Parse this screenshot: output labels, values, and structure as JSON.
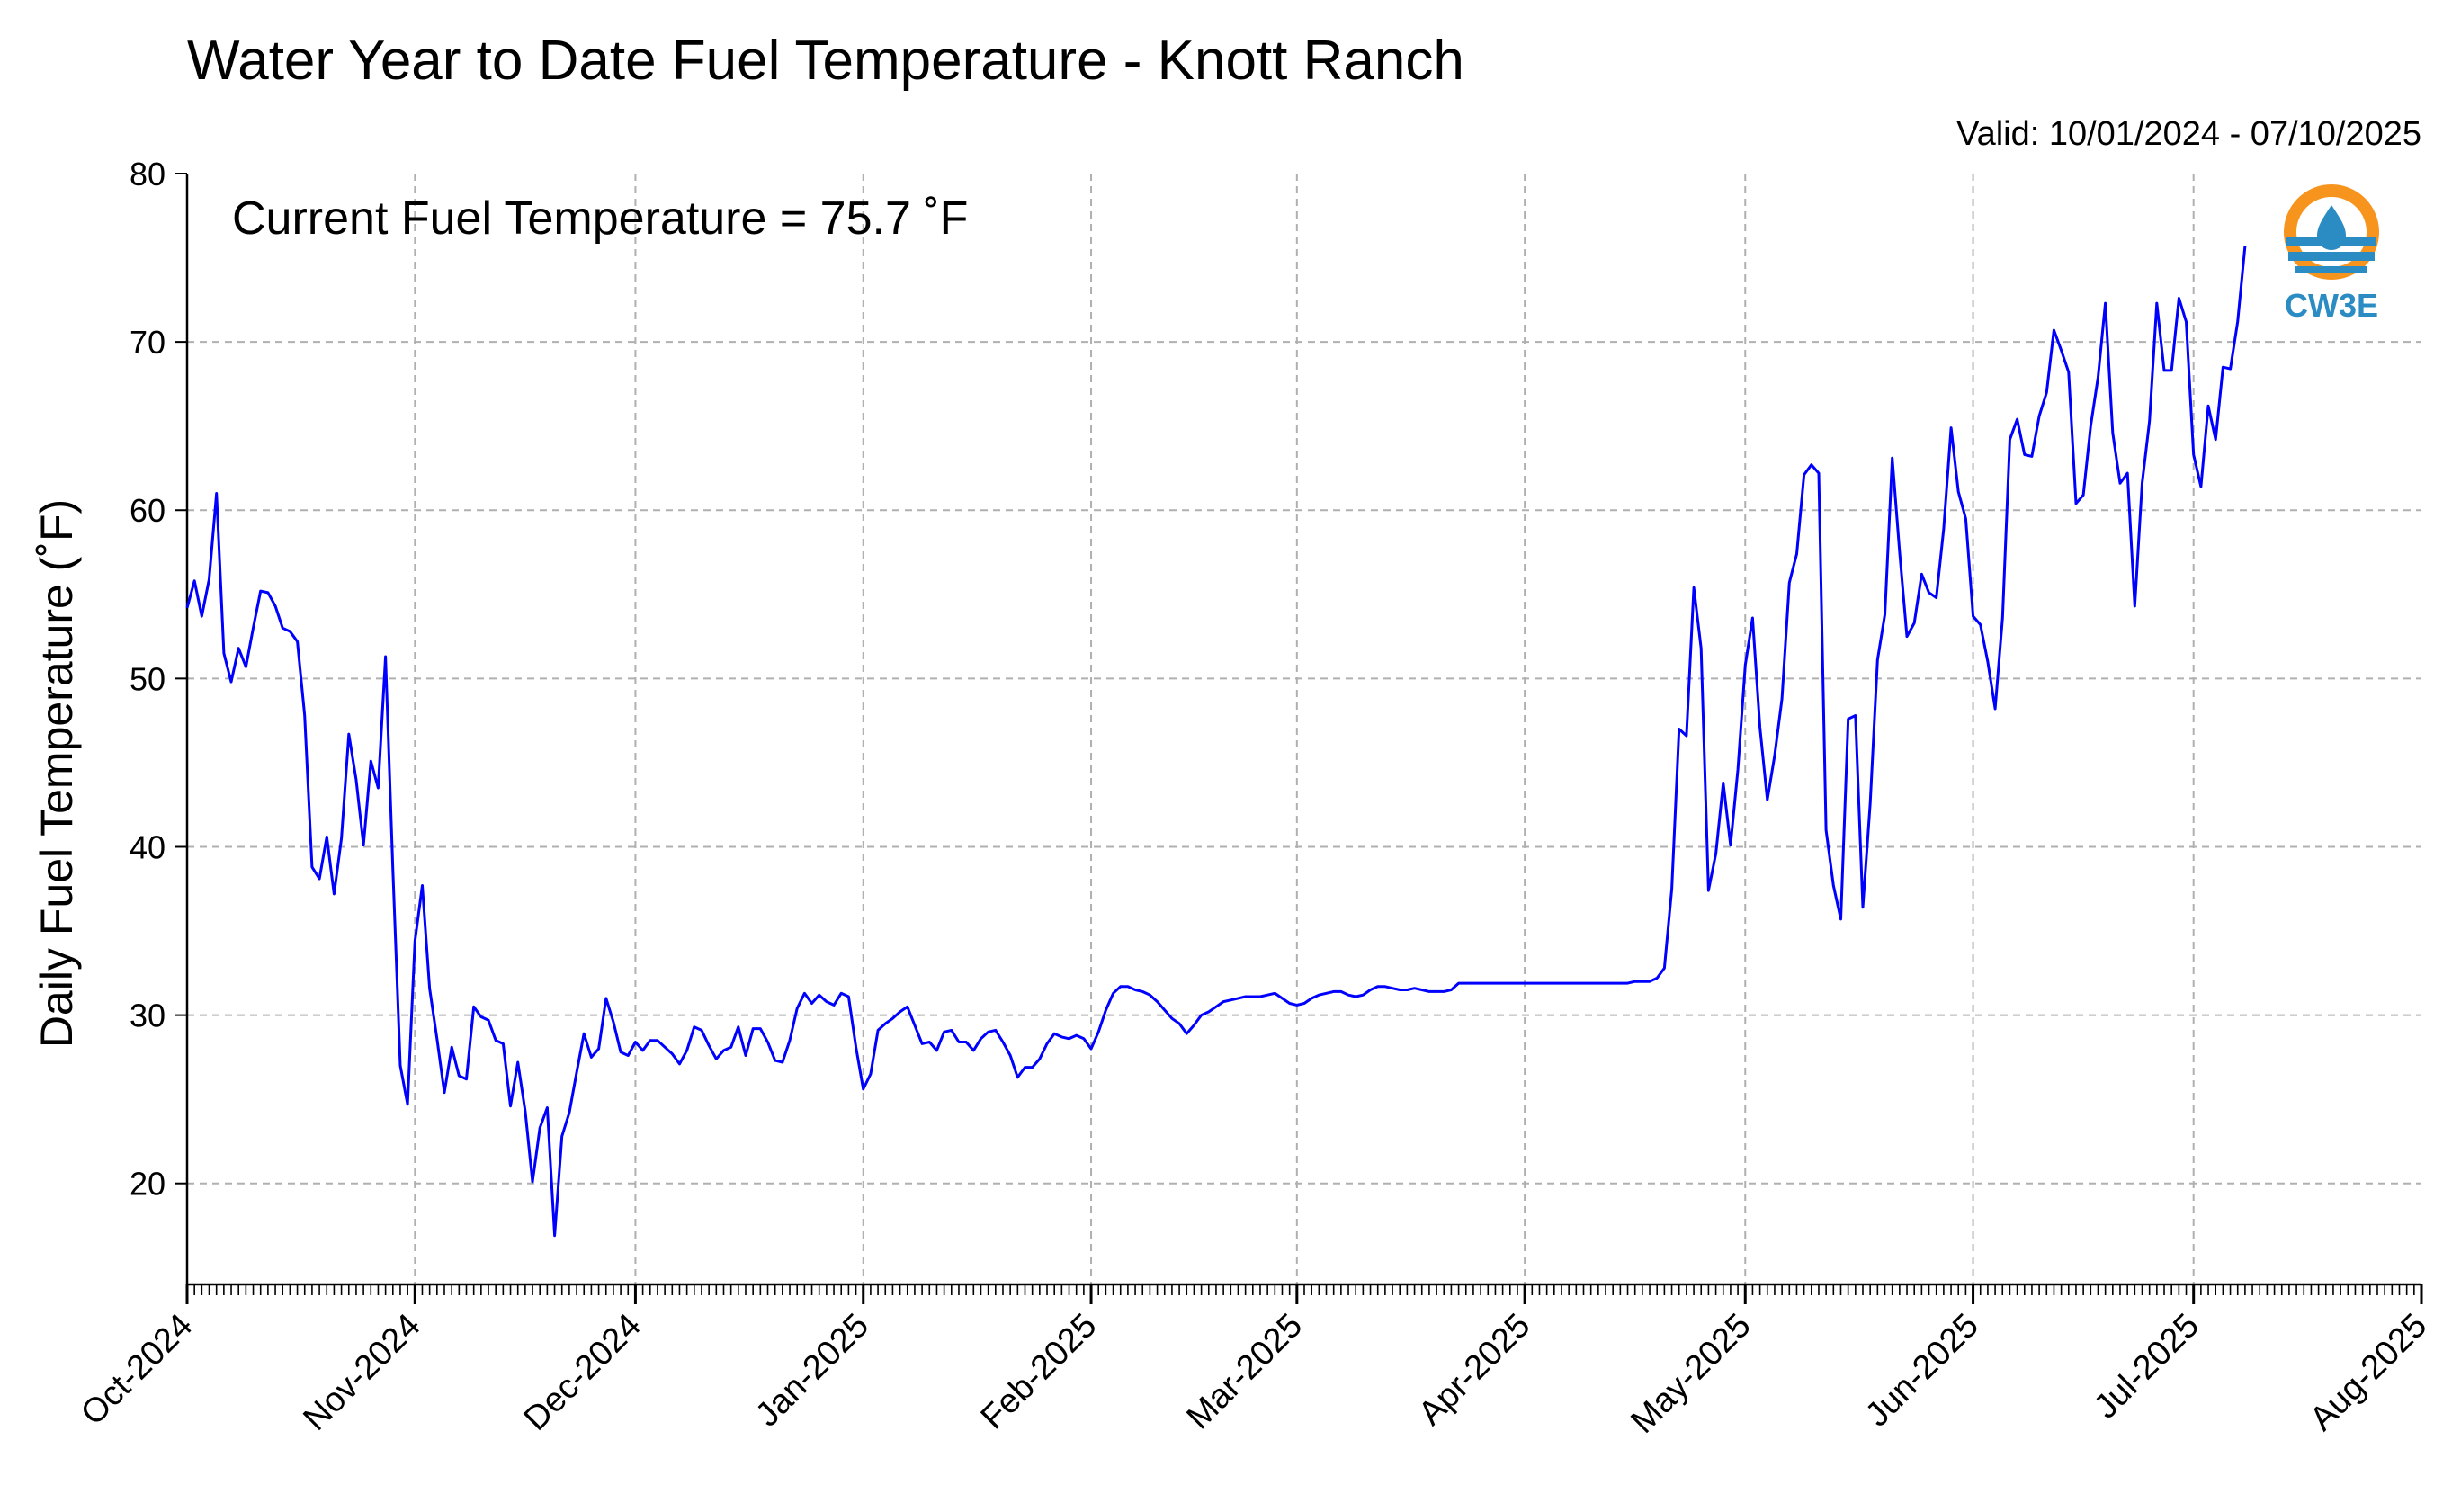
{
  "chart_data": {
    "type": "line",
    "title": "Water Year to Date Fuel Temperature - Knott Ranch",
    "subtitle": "Valid: 10/01/2024 - 07/10/2025",
    "annotation": "Current Fuel Temperature = 75.7  ˚F",
    "ylabel": "Daily Fuel Temperature (˚F)",
    "xlabel": "",
    "ylim": [
      14,
      80
    ],
    "yticks": [
      20,
      30,
      40,
      50,
      60,
      70,
      80
    ],
    "x_start": "2024-10-01",
    "x_end": "2025-08-01",
    "x_tick_labels": [
      "Oct-2024",
      "Nov-2024",
      "Dec-2024",
      "Jan-2025",
      "Feb-2025",
      "Mar-2025",
      "Apr-2025",
      "May-2025",
      "Jun-2025",
      "Jul-2025",
      "Aug-2025"
    ],
    "x_tick_dates": [
      "2024-10-01",
      "2024-11-01",
      "2024-12-01",
      "2025-01-01",
      "2025-02-01",
      "2025-03-01",
      "2025-04-01",
      "2025-05-01",
      "2025-06-01",
      "2025-07-01",
      "2025-08-01"
    ],
    "grid": true,
    "line_color": "#0000ff",
    "series": [
      {
        "points": [
          [
            "2024-10-01",
            54.2
          ],
          [
            "2024-10-02",
            55.8
          ],
          [
            "2024-10-03",
            53.7
          ],
          [
            "2024-10-04",
            55.9
          ],
          [
            "2024-10-05",
            61.0
          ],
          [
            "2024-10-06",
            51.5
          ],
          [
            "2024-10-07",
            49.8
          ],
          [
            "2024-10-08",
            51.8
          ],
          [
            "2024-10-09",
            50.7
          ],
          [
            "2024-10-10",
            53.0
          ],
          [
            "2024-10-11",
            55.2
          ],
          [
            "2024-10-12",
            55.1
          ],
          [
            "2024-10-13",
            54.3
          ],
          [
            "2024-10-14",
            53.0
          ],
          [
            "2024-10-15",
            52.8
          ],
          [
            "2024-10-16",
            52.2
          ],
          [
            "2024-10-17",
            47.8
          ],
          [
            "2024-10-18",
            38.8
          ],
          [
            "2024-10-19",
            38.1
          ],
          [
            "2024-10-20",
            40.6
          ],
          [
            "2024-10-21",
            37.2
          ],
          [
            "2024-10-22",
            40.5
          ],
          [
            "2024-10-23",
            46.7
          ],
          [
            "2024-10-24",
            44.0
          ],
          [
            "2024-10-25",
            40.1
          ],
          [
            "2024-10-26",
            45.1
          ],
          [
            "2024-10-27",
            43.5
          ],
          [
            "2024-10-28",
            51.3
          ],
          [
            "2024-10-29",
            38.6
          ],
          [
            "2024-10-30",
            27.0
          ],
          [
            "2024-10-31",
            24.7
          ],
          [
            "2024-11-01",
            34.4
          ],
          [
            "2024-11-02",
            37.7
          ],
          [
            "2024-11-03",
            31.6
          ],
          [
            "2024-11-04",
            28.6
          ],
          [
            "2024-11-05",
            25.4
          ],
          [
            "2024-11-06",
            28.1
          ],
          [
            "2024-11-07",
            26.4
          ],
          [
            "2024-11-08",
            26.2
          ],
          [
            "2024-11-09",
            30.5
          ],
          [
            "2024-11-10",
            29.9
          ],
          [
            "2024-11-11",
            29.7
          ],
          [
            "2024-11-12",
            28.5
          ],
          [
            "2024-11-13",
            28.3
          ],
          [
            "2024-11-14",
            24.6
          ],
          [
            "2024-11-15",
            27.2
          ],
          [
            "2024-11-16",
            24.3
          ],
          [
            "2024-11-17",
            20.1
          ],
          [
            "2024-11-18",
            23.3
          ],
          [
            "2024-11-19",
            24.5
          ],
          [
            "2024-11-20",
            16.9
          ],
          [
            "2024-11-21",
            22.8
          ],
          [
            "2024-11-22",
            24.2
          ],
          [
            "2024-11-23",
            26.6
          ],
          [
            "2024-11-24",
            28.9
          ],
          [
            "2024-11-25",
            27.5
          ],
          [
            "2024-11-26",
            28.0
          ],
          [
            "2024-11-27",
            31.0
          ],
          [
            "2024-11-28",
            29.6
          ],
          [
            "2024-11-29",
            27.8
          ],
          [
            "2024-11-30",
            27.6
          ],
          [
            "2024-12-01",
            28.4
          ],
          [
            "2024-12-02",
            27.9
          ],
          [
            "2024-12-03",
            28.5
          ],
          [
            "2024-12-04",
            28.5
          ],
          [
            "2024-12-05",
            28.1
          ],
          [
            "2024-12-06",
            27.7
          ],
          [
            "2024-12-07",
            27.1
          ],
          [
            "2024-12-08",
            27.9
          ],
          [
            "2024-12-09",
            29.3
          ],
          [
            "2024-12-10",
            29.1
          ],
          [
            "2024-12-11",
            28.2
          ],
          [
            "2024-12-12",
            27.4
          ],
          [
            "2024-12-13",
            27.9
          ],
          [
            "2024-12-14",
            28.1
          ],
          [
            "2024-12-15",
            29.3
          ],
          [
            "2024-12-16",
            27.6
          ],
          [
            "2024-12-17",
            29.2
          ],
          [
            "2024-12-18",
            29.2
          ],
          [
            "2024-12-19",
            28.4
          ],
          [
            "2024-12-20",
            27.3
          ],
          [
            "2024-12-21",
            27.2
          ],
          [
            "2024-12-22",
            28.5
          ],
          [
            "2024-12-23",
            30.4
          ],
          [
            "2024-12-24",
            31.3
          ],
          [
            "2024-12-25",
            30.7
          ],
          [
            "2024-12-26",
            31.2
          ],
          [
            "2024-12-27",
            30.8
          ],
          [
            "2024-12-28",
            30.6
          ],
          [
            "2024-12-29",
            31.3
          ],
          [
            "2024-12-30",
            31.1
          ],
          [
            "2024-12-31",
            28.1
          ],
          [
            "2025-01-01",
            25.6
          ],
          [
            "2025-01-02",
            26.5
          ],
          [
            "2025-01-03",
            29.1
          ],
          [
            "2025-01-04",
            29.5
          ],
          [
            "2025-01-05",
            29.8
          ],
          [
            "2025-01-06",
            30.2
          ],
          [
            "2025-01-07",
            30.5
          ],
          [
            "2025-01-08",
            29.4
          ],
          [
            "2025-01-09",
            28.3
          ],
          [
            "2025-01-10",
            28.4
          ],
          [
            "2025-01-11",
            27.9
          ],
          [
            "2025-01-12",
            29.0
          ],
          [
            "2025-01-13",
            29.1
          ],
          [
            "2025-01-14",
            28.4
          ],
          [
            "2025-01-15",
            28.4
          ],
          [
            "2025-01-16",
            27.9
          ],
          [
            "2025-01-17",
            28.6
          ],
          [
            "2025-01-18",
            29.0
          ],
          [
            "2025-01-19",
            29.1
          ],
          [
            "2025-01-20",
            28.4
          ],
          [
            "2025-01-21",
            27.6
          ],
          [
            "2025-01-22",
            26.3
          ],
          [
            "2025-01-23",
            26.9
          ],
          [
            "2025-01-24",
            26.9
          ],
          [
            "2025-01-25",
            27.4
          ],
          [
            "2025-01-26",
            28.3
          ],
          [
            "2025-01-27",
            28.9
          ],
          [
            "2025-01-28",
            28.7
          ],
          [
            "2025-01-29",
            28.6
          ],
          [
            "2025-01-30",
            28.8
          ],
          [
            "2025-01-31",
            28.6
          ],
          [
            "2025-02-01",
            28.0
          ],
          [
            "2025-02-02",
            29.0
          ],
          [
            "2025-02-03",
            30.3
          ],
          [
            "2025-02-04",
            31.3
          ],
          [
            "2025-02-05",
            31.7
          ],
          [
            "2025-02-06",
            31.7
          ],
          [
            "2025-02-07",
            31.5
          ],
          [
            "2025-02-08",
            31.4
          ],
          [
            "2025-02-09",
            31.2
          ],
          [
            "2025-02-10",
            30.8
          ],
          [
            "2025-02-11",
            30.3
          ],
          [
            "2025-02-12",
            29.8
          ],
          [
            "2025-02-13",
            29.5
          ],
          [
            "2025-02-14",
            28.9
          ],
          [
            "2025-02-15",
            29.4
          ],
          [
            "2025-02-16",
            30.0
          ],
          [
            "2025-02-17",
            30.2
          ],
          [
            "2025-02-18",
            30.5
          ],
          [
            "2025-02-19",
            30.8
          ],
          [
            "2025-02-20",
            30.9
          ],
          [
            "2025-02-21",
            31.0
          ],
          [
            "2025-02-22",
            31.1
          ],
          [
            "2025-02-23",
            31.1
          ],
          [
            "2025-02-24",
            31.1
          ],
          [
            "2025-02-25",
            31.2
          ],
          [
            "2025-02-26",
            31.3
          ],
          [
            "2025-02-27",
            31.0
          ],
          [
            "2025-02-28",
            30.7
          ],
          [
            "2025-03-01",
            30.6
          ],
          [
            "2025-03-02",
            30.7
          ],
          [
            "2025-03-03",
            31.0
          ],
          [
            "2025-03-04",
            31.2
          ],
          [
            "2025-03-05",
            31.3
          ],
          [
            "2025-03-06",
            31.4
          ],
          [
            "2025-03-07",
            31.4
          ],
          [
            "2025-03-08",
            31.2
          ],
          [
            "2025-03-09",
            31.1
          ],
          [
            "2025-03-10",
            31.2
          ],
          [
            "2025-03-11",
            31.5
          ],
          [
            "2025-03-12",
            31.7
          ],
          [
            "2025-03-13",
            31.7
          ],
          [
            "2025-03-14",
            31.6
          ],
          [
            "2025-03-15",
            31.5
          ],
          [
            "2025-03-16",
            31.5
          ],
          [
            "2025-03-17",
            31.6
          ],
          [
            "2025-03-18",
            31.5
          ],
          [
            "2025-03-19",
            31.4
          ],
          [
            "2025-03-20",
            31.4
          ],
          [
            "2025-03-21",
            31.4
          ],
          [
            "2025-03-22",
            31.5
          ],
          [
            "2025-03-23",
            31.9
          ],
          [
            "2025-03-24",
            31.9
          ],
          [
            "2025-03-25",
            31.9
          ],
          [
            "2025-03-26",
            31.9
          ],
          [
            "2025-03-27",
            31.9
          ],
          [
            "2025-03-28",
            31.9
          ],
          [
            "2025-03-29",
            31.9
          ],
          [
            "2025-03-30",
            31.9
          ],
          [
            "2025-03-31",
            31.9
          ],
          [
            "2025-04-01",
            31.9
          ],
          [
            "2025-04-05",
            31.9
          ],
          [
            "2025-04-10",
            31.9
          ],
          [
            "2025-04-15",
            31.9
          ],
          [
            "2025-04-16",
            32.0
          ],
          [
            "2025-04-18",
            32.0
          ],
          [
            "2025-04-19",
            32.2
          ],
          [
            "2025-04-20",
            32.8
          ],
          [
            "2025-04-21",
            37.5
          ],
          [
            "2025-04-22",
            47.0
          ],
          [
            "2025-04-23",
            46.6
          ],
          [
            "2025-04-24",
            55.4
          ],
          [
            "2025-04-25",
            51.8
          ],
          [
            "2025-04-26",
            37.4
          ],
          [
            "2025-04-27",
            39.6
          ],
          [
            "2025-04-28",
            43.8
          ],
          [
            "2025-04-29",
            40.1
          ],
          [
            "2025-04-30",
            44.6
          ],
          [
            "2025-05-01",
            50.8
          ],
          [
            "2025-05-02",
            53.6
          ],
          [
            "2025-05-03",
            47.1
          ],
          [
            "2025-05-04",
            42.8
          ],
          [
            "2025-05-05",
            45.4
          ],
          [
            "2025-05-06",
            48.8
          ],
          [
            "2025-05-07",
            55.7
          ],
          [
            "2025-05-08",
            57.4
          ],
          [
            "2025-05-09",
            62.1
          ],
          [
            "2025-05-10",
            62.7
          ],
          [
            "2025-05-11",
            62.2
          ],
          [
            "2025-05-12",
            41.0
          ],
          [
            "2025-05-13",
            37.7
          ],
          [
            "2025-05-14",
            35.7
          ],
          [
            "2025-05-15",
            47.6
          ],
          [
            "2025-05-16",
            47.8
          ],
          [
            "2025-05-17",
            36.4
          ],
          [
            "2025-05-18",
            42.6
          ],
          [
            "2025-05-19",
            51.1
          ],
          [
            "2025-05-20",
            53.8
          ],
          [
            "2025-05-21",
            63.1
          ],
          [
            "2025-05-22",
            57.5
          ],
          [
            "2025-05-23",
            52.5
          ],
          [
            "2025-05-24",
            53.3
          ],
          [
            "2025-05-25",
            56.2
          ],
          [
            "2025-05-26",
            55.1
          ],
          [
            "2025-05-27",
            54.8
          ],
          [
            "2025-05-28",
            58.9
          ],
          [
            "2025-05-29",
            64.9
          ],
          [
            "2025-05-30",
            61.1
          ],
          [
            "2025-05-31",
            59.5
          ],
          [
            "2025-06-01",
            53.7
          ],
          [
            "2025-06-02",
            53.2
          ],
          [
            "2025-06-03",
            51.0
          ],
          [
            "2025-06-04",
            48.2
          ],
          [
            "2025-06-05",
            53.6
          ],
          [
            "2025-06-06",
            64.2
          ],
          [
            "2025-06-07",
            65.4
          ],
          [
            "2025-06-08",
            63.3
          ],
          [
            "2025-06-09",
            63.2
          ],
          [
            "2025-06-10",
            65.6
          ],
          [
            "2025-06-11",
            67.0
          ],
          [
            "2025-06-12",
            70.7
          ],
          [
            "2025-06-13",
            69.5
          ],
          [
            "2025-06-14",
            68.2
          ],
          [
            "2025-06-15",
            60.4
          ],
          [
            "2025-06-16",
            60.9
          ],
          [
            "2025-06-17",
            65.0
          ],
          [
            "2025-06-18",
            67.9
          ],
          [
            "2025-06-19",
            72.3
          ],
          [
            "2025-06-20",
            64.6
          ],
          [
            "2025-06-21",
            61.6
          ],
          [
            "2025-06-22",
            62.2
          ],
          [
            "2025-06-23",
            54.3
          ],
          [
            "2025-06-24",
            61.6
          ],
          [
            "2025-06-25",
            65.3
          ],
          [
            "2025-06-26",
            72.3
          ],
          [
            "2025-06-27",
            68.3
          ],
          [
            "2025-06-28",
            68.3
          ],
          [
            "2025-06-29",
            72.6
          ],
          [
            "2025-06-30",
            71.2
          ],
          [
            "2025-07-01",
            63.3
          ],
          [
            "2025-07-02",
            61.4
          ],
          [
            "2025-07-03",
            66.2
          ],
          [
            "2025-07-04",
            64.2
          ],
          [
            "2025-07-05",
            68.5
          ],
          [
            "2025-07-06",
            68.4
          ],
          [
            "2025-07-07",
            71.2
          ],
          [
            "2025-07-08",
            75.7
          ]
        ]
      }
    ]
  },
  "logo": {
    "label": "CW3E",
    "colors": {
      "ring": "#f7941d",
      "blue": "#2b8cc4"
    }
  }
}
